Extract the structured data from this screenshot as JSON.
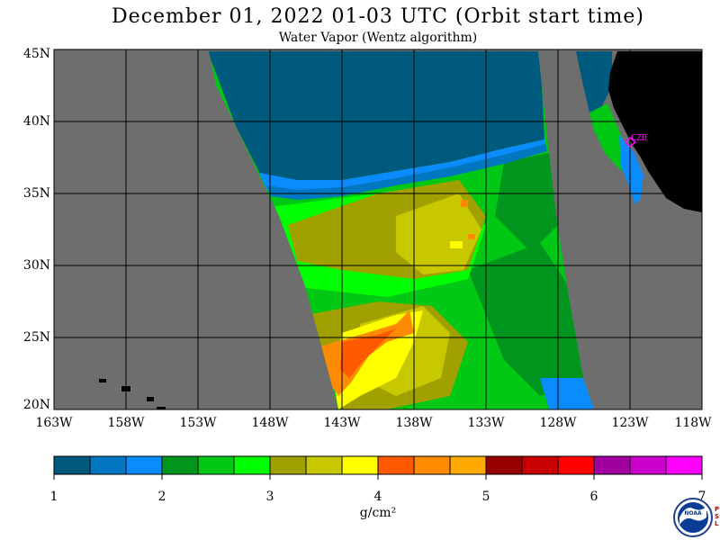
{
  "title": "December 01, 2022  01-03 UTC  (Orbit start time)",
  "subtitle": "Water Vapor (Wentz algorithm)",
  "latitude_labels": [
    "45N",
    "40N",
    "35N",
    "30N",
    "25N",
    "20N"
  ],
  "longitude_labels": [
    "163W",
    "158W",
    "153W",
    "148W",
    "143W",
    "138W",
    "133W",
    "128W",
    "123W",
    "118W"
  ],
  "station_label": "CZD",
  "colorbar": {
    "tick_labels": [
      "1",
      "2",
      "3",
      "4",
      "5",
      "6",
      "7"
    ],
    "units": "g/cm²",
    "colors": [
      "#005a7d",
      "#0077c0",
      "#0a8cff",
      "#00961e",
      "#00c814",
      "#00ff00",
      "#a0a000",
      "#c8c800",
      "#ffff00",
      "#ff5a00",
      "#ff8c00",
      "#ffaa00",
      "#960000",
      "#c80000",
      "#ff0000",
      "#a000a0",
      "#cc00cc",
      "#ff00ff"
    ]
  },
  "map_colors": {
    "no_data": "#6e6e6e",
    "land": "#000000",
    "grid": "#000000",
    "station": "#ff00ff"
  },
  "logo": {
    "name": "NOAA",
    "side_text": "PSL"
  }
}
